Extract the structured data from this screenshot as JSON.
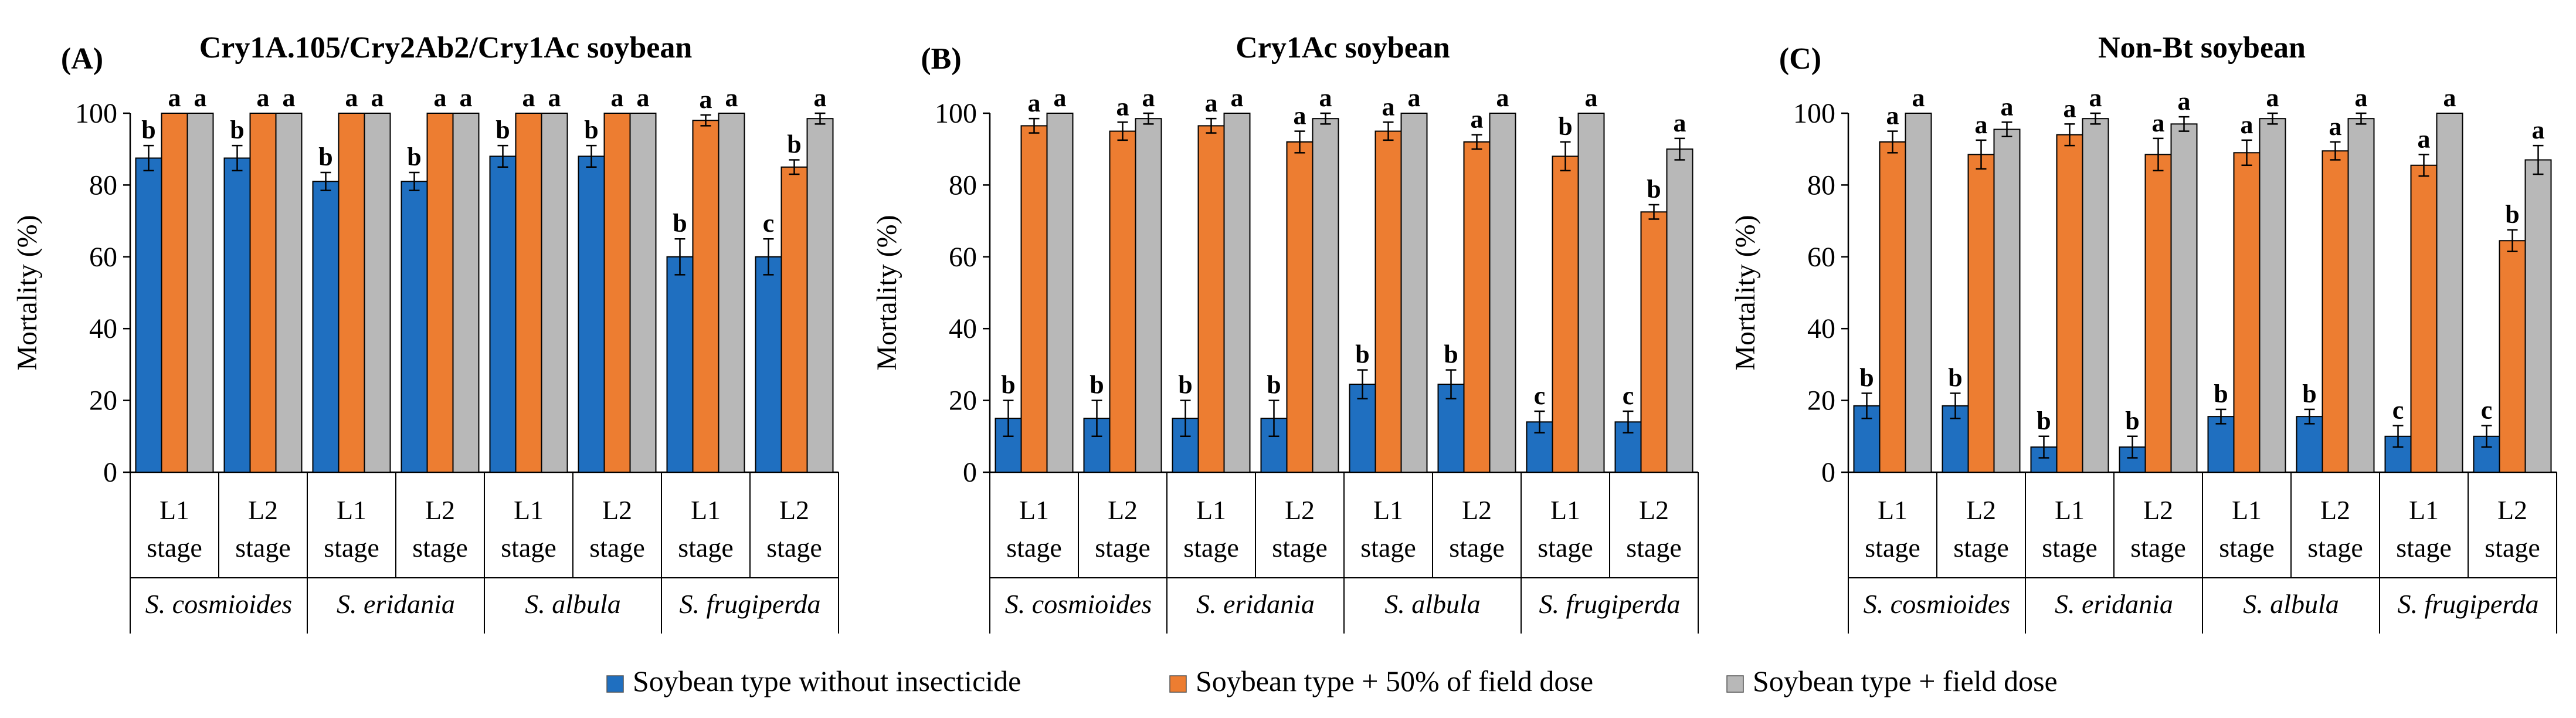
{
  "chart_data": [
    {
      "type": "bar",
      "panel": "(A)",
      "title": "Cry1A.105/Cry2Ab2/Cry1Ac soybean",
      "ylabel": "Mortality (%)",
      "ylim": [
        0,
        100
      ],
      "yticks": [
        0,
        20,
        40,
        60,
        80,
        100
      ],
      "categories": [
        "L1 stage",
        "L2 stage",
        "L1 stage",
        "L2 stage",
        "L1 stage",
        "L2 stage",
        "L1 stage",
        "L2 stage"
      ],
      "groups": [
        "S. cosmioides",
        "S. eridania",
        "S. albula",
        "S. frugiperda"
      ],
      "series": [
        {
          "name": "Soybean type without insecticide",
          "values": [
            87.5,
            87.5,
            81,
            81,
            88,
            88,
            60,
            60
          ],
          "errors": [
            3.5,
            3.5,
            2.5,
            2.5,
            3,
            3,
            5,
            5
          ],
          "labels": [
            "b",
            "b",
            "b",
            "b",
            "b",
            "b",
            "b",
            "c"
          ]
        },
        {
          "name": "Soybean type + 50% of field dose",
          "values": [
            100,
            100,
            100,
            100,
            100,
            100,
            98,
            85
          ],
          "errors": [
            0,
            0,
            0,
            0,
            0,
            0,
            1.5,
            2
          ],
          "labels": [
            "a",
            "a",
            "a",
            "a",
            "a",
            "a",
            "a",
            "b"
          ]
        },
        {
          "name": "Soybean type + field dose",
          "values": [
            100,
            100,
            100,
            100,
            100,
            100,
            100,
            98.5
          ],
          "errors": [
            0,
            0,
            0,
            0,
            0,
            0,
            0,
            1.5
          ],
          "labels": [
            "a",
            "a",
            "a",
            "a",
            "a",
            "a",
            "a",
            "a"
          ]
        }
      ]
    },
    {
      "type": "bar",
      "panel": "(B)",
      "title": "Cry1Ac soybean",
      "ylabel": "Mortality (%)",
      "ylim": [
        0,
        100
      ],
      "yticks": [
        0,
        20,
        40,
        60,
        80,
        100
      ],
      "categories": [
        "L1 stage",
        "L2 stage",
        "L1 stage",
        "L2 stage",
        "L1 stage",
        "L2 stage",
        "L1 stage",
        "L2 stage"
      ],
      "groups": [
        "S. cosmioides",
        "S. eridania",
        "S. albula",
        "S. frugiperda"
      ],
      "series": [
        {
          "name": "Soybean type without insecticide",
          "values": [
            15,
            15,
            15,
            15,
            24.5,
            24.5,
            14,
            14
          ],
          "errors": [
            5,
            5,
            5,
            5,
            4,
            4,
            3,
            3
          ],
          "labels": [
            "b",
            "b",
            "b",
            "b",
            "b",
            "b",
            "c",
            "c"
          ]
        },
        {
          "name": "Soybean type + 50% of field dose",
          "values": [
            96.5,
            95,
            96.5,
            92,
            95,
            92,
            88,
            72.5
          ],
          "errors": [
            2,
            2.5,
            2,
            3,
            2.5,
            2,
            4,
            2
          ],
          "labels": [
            "a",
            "a",
            "a",
            "a",
            "a",
            "a",
            "b",
            "b"
          ]
        },
        {
          "name": "Soybean type + field dose",
          "values": [
            100,
            98.5,
            100,
            98.5,
            100,
            100,
            100,
            90
          ],
          "errors": [
            0,
            1.5,
            0,
            1.5,
            0,
            0,
            0,
            3
          ],
          "labels": [
            "a",
            "a",
            "a",
            "a",
            "a",
            "a",
            "a",
            "a"
          ]
        }
      ]
    },
    {
      "type": "bar",
      "panel": "(C)",
      "title": "Non-Bt soybean",
      "ylabel": "Mortality (%)",
      "ylim": [
        0,
        100
      ],
      "yticks": [
        0,
        20,
        40,
        60,
        80,
        100
      ],
      "categories": [
        "L1 stage",
        "L2 stage",
        "L1 stage",
        "L2 stage",
        "L1 stage",
        "L2 stage",
        "L1 stage",
        "L2 stage"
      ],
      "groups": [
        "S. cosmioides",
        "S. eridania",
        "S. albula",
        "S. frugiperda"
      ],
      "series": [
        {
          "name": "Soybean type without insecticide",
          "values": [
            18.5,
            18.5,
            7,
            7,
            15.5,
            15.5,
            10,
            10
          ],
          "errors": [
            3.5,
            3.5,
            3,
            3,
            2,
            2,
            3,
            3
          ],
          "labels": [
            "b",
            "b",
            "b",
            "b",
            "b",
            "b",
            "c",
            "c"
          ]
        },
        {
          "name": "Soybean type + 50% of field dose",
          "values": [
            92,
            88.5,
            94,
            88.5,
            89,
            89.5,
            85.5,
            64.5
          ],
          "errors": [
            3,
            4,
            3,
            4.5,
            3.5,
            2.5,
            3,
            3
          ],
          "labels": [
            "a",
            "a",
            "a",
            "a",
            "a",
            "a",
            "a",
            "b"
          ]
        },
        {
          "name": "Soybean type + field dose",
          "values": [
            100,
            95.5,
            98.5,
            97,
            98.5,
            98.5,
            100,
            87
          ],
          "errors": [
            0,
            2,
            1.5,
            2,
            1.5,
            1.5,
            0,
            4
          ],
          "labels": [
            "a",
            "a",
            "a",
            "a",
            "a",
            "a",
            "a",
            "a"
          ]
        }
      ]
    }
  ],
  "legend": [
    {
      "label": "Soybean type without insecticide",
      "color": "#1f6fc0"
    },
    {
      "label": "Soybean type + 50% of field dose",
      "color": "#ed7d31"
    },
    {
      "label": "Soybean type + field dose",
      "color": "#b8b8b8"
    }
  ],
  "colors": {
    "series": [
      "#1f6fc0",
      "#ed7d31",
      "#b8b8b8"
    ]
  }
}
